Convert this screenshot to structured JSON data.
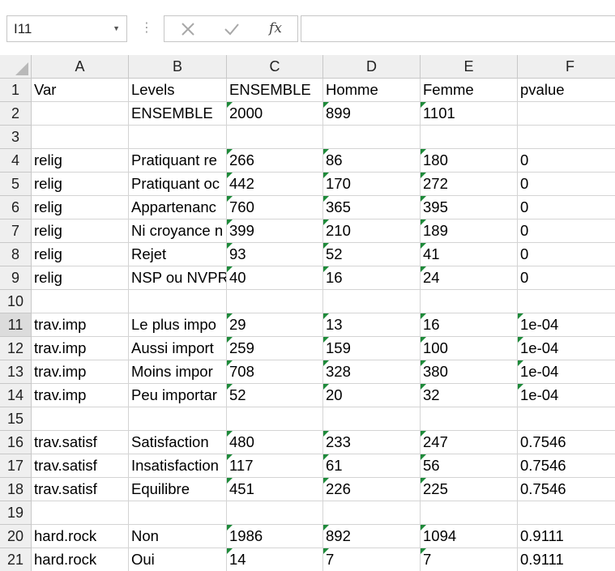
{
  "formula_bar": {
    "namebox": "I11",
    "formula": "",
    "cancel_icon": "close-icon",
    "enter_icon": "check-icon",
    "function_label": "fx"
  },
  "columns": [
    "A",
    "B",
    "C",
    "D",
    "E",
    "F"
  ],
  "rows": [
    {
      "n": "1",
      "cells": [
        "Var",
        "Levels",
        "ENSEMBLE",
        "Homme",
        "Femme",
        "pvalue"
      ]
    },
    {
      "n": "2",
      "cells": [
        "",
        "ENSEMBLE",
        "2000",
        "899",
        "1101",
        ""
      ]
    },
    {
      "n": "3",
      "cells": [
        "",
        "",
        "",
        "",
        "",
        ""
      ]
    },
    {
      "n": "4",
      "cells": [
        "relig",
        "Pratiquant re",
        "266",
        "86",
        "180",
        "0"
      ]
    },
    {
      "n": "5",
      "cells": [
        "relig",
        "Pratiquant oc",
        "442",
        "170",
        "272",
        "0"
      ]
    },
    {
      "n": "6",
      "cells": [
        "relig",
        "Appartenanc",
        "760",
        "365",
        "395",
        "0"
      ]
    },
    {
      "n": "7",
      "cells": [
        "relig",
        "Ni croyance n",
        "399",
        "210",
        "189",
        "0"
      ]
    },
    {
      "n": "8",
      "cells": [
        "relig",
        "Rejet",
        "93",
        "52",
        "41",
        "0"
      ]
    },
    {
      "n": "9",
      "cells": [
        "relig",
        "NSP ou NVPR",
        "40",
        "16",
        "24",
        "0"
      ]
    },
    {
      "n": "10",
      "cells": [
        "",
        "",
        "",
        "",
        "",
        ""
      ]
    },
    {
      "n": "11",
      "cells": [
        "trav.imp",
        "Le plus impo",
        "29",
        "13",
        "16",
        "1e-04"
      ]
    },
    {
      "n": "12",
      "cells": [
        "trav.imp",
        "Aussi import",
        "259",
        "159",
        "100",
        "1e-04"
      ]
    },
    {
      "n": "13",
      "cells": [
        "trav.imp",
        "Moins impor",
        "708",
        "328",
        "380",
        "1e-04"
      ]
    },
    {
      "n": "14",
      "cells": [
        "trav.imp",
        "Peu importar",
        "52",
        "20",
        "32",
        "1e-04"
      ]
    },
    {
      "n": "15",
      "cells": [
        "",
        "",
        "",
        "",
        "",
        ""
      ]
    },
    {
      "n": "16",
      "cells": [
        "trav.satisf",
        "Satisfaction",
        "480",
        "233",
        "247",
        "0.7546"
      ]
    },
    {
      "n": "17",
      "cells": [
        "trav.satisf",
        "Insatisfaction",
        "117",
        "61",
        "56",
        "0.7546"
      ]
    },
    {
      "n": "18",
      "cells": [
        "trav.satisf",
        "Equilibre",
        "451",
        "226",
        "225",
        "0.7546"
      ]
    },
    {
      "n": "19",
      "cells": [
        "",
        "",
        "",
        "",
        "",
        ""
      ]
    },
    {
      "n": "20",
      "cells": [
        "hard.rock",
        "Non",
        "1986",
        "892",
        "1094",
        "0.9111"
      ]
    },
    {
      "n": "21",
      "cells": [
        "hard.rock",
        "Oui",
        "14",
        "7",
        "7",
        "0.9111"
      ]
    }
  ]
}
